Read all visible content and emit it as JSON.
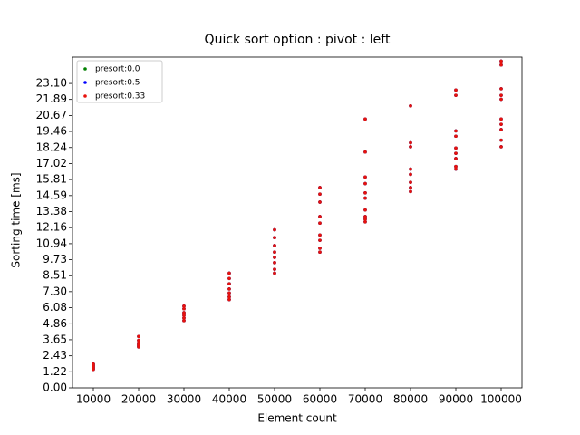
{
  "chart_data": {
    "type": "scatter",
    "title": "Quick sort option : pivot : left",
    "x_label": "Element count",
    "y_label": "Sorting time [ms]",
    "xlim": [
      5400,
      104600
    ],
    "ylim": [
      0,
      25.1
    ],
    "xticks": [
      10000,
      20000,
      30000,
      40000,
      50000,
      60000,
      70000,
      80000,
      90000,
      100000
    ],
    "yticks": [
      {
        "value": 0,
        "label": "0.00"
      },
      {
        "value": 1.22,
        "label": "1.22"
      },
      {
        "value": 2.43,
        "label": "2.43"
      },
      {
        "value": 3.65,
        "label": "3.65"
      },
      {
        "value": 4.86,
        "label": "4.86"
      },
      {
        "value": 6.08,
        "label": "6.08"
      },
      {
        "value": 7.3,
        "label": "7.30"
      },
      {
        "value": 8.51,
        "label": "8.51"
      },
      {
        "value": 9.73,
        "label": "9.73"
      },
      {
        "value": 10.94,
        "label": "10.94"
      },
      {
        "value": 12.16,
        "label": "12.16"
      },
      {
        "value": 13.38,
        "label": "13.38"
      },
      {
        "value": 14.59,
        "label": "14.59"
      },
      {
        "value": 15.81,
        "label": "15.81"
      },
      {
        "value": 17.02,
        "label": "17.02"
      },
      {
        "value": 18.24,
        "label": "18.24"
      },
      {
        "value": 19.46,
        "label": "19.46"
      },
      {
        "value": 20.67,
        "label": "20.67"
      },
      {
        "value": 21.89,
        "label": "21.89"
      },
      {
        "value": 23.1,
        "label": "23.10"
      }
    ],
    "legend": "upper left",
    "x": [
      10000,
      10000,
      10000,
      10000,
      10000,
      20000,
      20000,
      20000,
      20000,
      20000,
      20000,
      30000,
      30000,
      30000,
      30000,
      30000,
      30000,
      40000,
      40000,
      40000,
      40000,
      40000,
      40000,
      40000,
      50000,
      50000,
      50000,
      50000,
      50000,
      50000,
      50000,
      50000,
      60000,
      60000,
      60000,
      60000,
      60000,
      60000,
      60000,
      60000,
      60000,
      70000,
      70000,
      70000,
      70000,
      70000,
      70000,
      70000,
      70000,
      70000,
      70000,
      80000,
      80000,
      80000,
      80000,
      80000,
      80000,
      80000,
      80000,
      90000,
      90000,
      90000,
      90000,
      90000,
      90000,
      90000,
      90000,
      90000,
      100000,
      100000,
      100000,
      100000,
      100000,
      100000,
      100000,
      100000,
      100000,
      100000
    ],
    "series": [
      {
        "name": "presort:0.0",
        "color": "#008000",
        "values": [
          1.4,
          1.5,
          1.6,
          1.7,
          1.8,
          3.1,
          3.2,
          3.3,
          3.4,
          3.6,
          3.9,
          5.1,
          5.3,
          5.5,
          5.7,
          6.0,
          6.2,
          6.7,
          6.9,
          7.2,
          7.5,
          7.9,
          8.3,
          8.7,
          8.7,
          9.0,
          9.5,
          9.9,
          10.3,
          10.8,
          11.4,
          12.0,
          10.3,
          10.6,
          11.2,
          11.6,
          12.5,
          13.0,
          14.1,
          14.7,
          15.2,
          12.6,
          12.8,
          13.0,
          13.5,
          14.4,
          14.8,
          15.5,
          16.0,
          17.9,
          20.4,
          14.9,
          15.2,
          15.6,
          16.2,
          16.6,
          18.3,
          18.6,
          21.4,
          16.6,
          16.8,
          17.4,
          17.8,
          18.2,
          19.1,
          19.5,
          22.2,
          22.6,
          18.3,
          18.8,
          19.6,
          20.0,
          20.4,
          21.9,
          22.2,
          22.7,
          24.5,
          24.8
        ]
      },
      {
        "name": "presort:0.5",
        "color": "#0000ff",
        "values": [
          1.4,
          1.5,
          1.6,
          1.7,
          1.8,
          3.1,
          3.2,
          3.3,
          3.4,
          3.6,
          3.9,
          5.1,
          5.3,
          5.5,
          5.7,
          6.0,
          6.2,
          6.7,
          6.9,
          7.2,
          7.5,
          7.9,
          8.3,
          8.7,
          8.7,
          9.0,
          9.5,
          9.9,
          10.3,
          10.8,
          11.4,
          12.0,
          10.3,
          10.6,
          11.2,
          11.6,
          12.5,
          13.0,
          14.1,
          14.7,
          15.2,
          12.6,
          12.8,
          13.0,
          13.5,
          14.4,
          14.8,
          15.5,
          16.0,
          17.9,
          20.4,
          14.9,
          15.2,
          15.6,
          16.2,
          16.6,
          18.3,
          18.6,
          21.4,
          16.6,
          16.8,
          17.4,
          17.8,
          18.2,
          19.1,
          19.5,
          22.2,
          22.6,
          18.3,
          18.8,
          19.6,
          20.0,
          20.4,
          21.9,
          22.2,
          22.7,
          24.5,
          24.8
        ]
      },
      {
        "name": "presort:0.33",
        "color": "#e8120c",
        "values": [
          1.4,
          1.5,
          1.6,
          1.7,
          1.8,
          3.1,
          3.2,
          3.3,
          3.4,
          3.6,
          3.9,
          5.1,
          5.3,
          5.5,
          5.7,
          6.0,
          6.2,
          6.7,
          6.9,
          7.2,
          7.5,
          7.9,
          8.3,
          8.7,
          8.7,
          9.0,
          9.5,
          9.9,
          10.3,
          10.8,
          11.4,
          12.0,
          10.3,
          10.6,
          11.2,
          11.6,
          12.5,
          13.0,
          14.1,
          14.7,
          15.2,
          12.6,
          12.8,
          13.0,
          13.5,
          14.4,
          14.8,
          15.5,
          16.0,
          17.9,
          20.4,
          14.9,
          15.2,
          15.6,
          16.2,
          16.6,
          18.3,
          18.6,
          21.4,
          16.6,
          16.8,
          17.4,
          17.8,
          18.2,
          19.1,
          19.5,
          22.2,
          22.6,
          18.3,
          18.8,
          19.6,
          20.0,
          20.4,
          21.9,
          22.2,
          22.7,
          24.5,
          24.8
        ]
      }
    ]
  }
}
